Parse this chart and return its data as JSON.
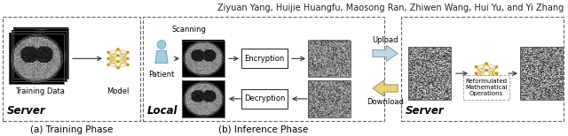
{
  "title_text": "Ziyuan Yang, Huijie Huangfu, Maosong Ran, Zhiwen Wang, Hui Yu, and Yi Zhang",
  "title_fontsize": 7.0,
  "caption_a": "(a) Training Phase",
  "caption_b": "(b) Inference Phase",
  "caption_fontsize": 7.5,
  "server_left_label": "Server",
  "local_label": "Local",
  "server_right_label": "Server",
  "label_fontsize": 8.5,
  "training_data_label": "Training Data",
  "model_label": "Model",
  "patient_label": "Patient",
  "scanning_label": "Scanning",
  "encryption_label": "Encryption",
  "decryption_label": "Decryption",
  "upload_label": "Upload",
  "download_label": "Download",
  "reformulated_label": "Reformulated\nMathematical\nOperations",
  "sub_fontsize": 6.0,
  "bg_color": "#ffffff",
  "nn_color": "#c8960a",
  "upload_color": "#b8d8ea",
  "download_color": "#e8d070"
}
